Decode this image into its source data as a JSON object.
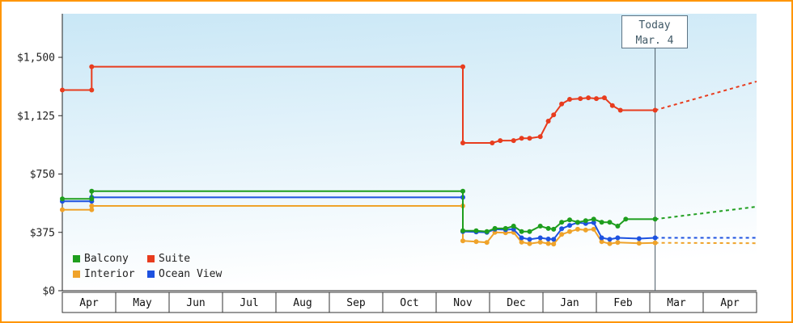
{
  "chart_data": {
    "type": "line",
    "x_axis": {
      "months": [
        "Apr",
        "May",
        "Jun",
        "Jul",
        "Aug",
        "Sep",
        "Oct",
        "Nov",
        "Dec",
        "Jan",
        "Feb",
        "Mar",
        "Apr"
      ]
    },
    "y_axis": {
      "ticks": [
        {
          "label": "$1,500",
          "value": 1500
        },
        {
          "label": "$1,125",
          "value": 1125
        },
        {
          "label": "$750",
          "value": 750
        },
        {
          "label": "$375",
          "value": 375
        },
        {
          "label": "$0",
          "value": 0
        }
      ]
    },
    "ylim": [
      0,
      1500
    ],
    "x_max": 13,
    "grid": false,
    "legend_position": "bottom-left",
    "today": {
      "label": "Today",
      "date": "Mar. 4",
      "x": 11.1
    },
    "series": [
      {
        "name": "Balcony",
        "color": "#1e9e1e",
        "solid": [
          [
            0,
            590
          ],
          [
            0.55,
            590
          ],
          [
            0.55,
            640
          ],
          [
            7.5,
            640
          ],
          [
            7.5,
            385
          ],
          [
            7.75,
            385
          ],
          [
            7.95,
            380
          ],
          [
            8.1,
            400
          ],
          [
            8.3,
            400
          ],
          [
            8.45,
            415
          ],
          [
            8.6,
            380
          ],
          [
            8.75,
            380
          ],
          [
            8.95,
            415
          ],
          [
            9.1,
            400
          ],
          [
            9.2,
            395
          ],
          [
            9.35,
            440
          ],
          [
            9.5,
            455
          ],
          [
            9.65,
            440
          ],
          [
            9.8,
            450
          ],
          [
            9.95,
            460
          ],
          [
            10.1,
            440
          ],
          [
            10.25,
            440
          ],
          [
            10.4,
            415
          ],
          [
            10.55,
            460
          ],
          [
            11.1,
            460
          ]
        ],
        "dotted": [
          [
            11.1,
            460
          ],
          [
            13,
            540
          ]
        ]
      },
      {
        "name": "Suite",
        "color": "#e83c1e",
        "solid": [
          [
            0,
            1290
          ],
          [
            0.55,
            1290
          ],
          [
            0.55,
            1440
          ],
          [
            7.5,
            1440
          ],
          [
            7.5,
            950
          ],
          [
            8.05,
            950
          ],
          [
            8.2,
            965
          ],
          [
            8.45,
            965
          ],
          [
            8.6,
            980
          ],
          [
            8.75,
            980
          ],
          [
            8.95,
            990
          ],
          [
            9.1,
            1090
          ],
          [
            9.2,
            1130
          ],
          [
            9.35,
            1200
          ],
          [
            9.5,
            1230
          ],
          [
            9.7,
            1235
          ],
          [
            9.85,
            1240
          ],
          [
            10.0,
            1235
          ],
          [
            10.15,
            1240
          ],
          [
            10.3,
            1190
          ],
          [
            10.45,
            1160
          ],
          [
            11.1,
            1160
          ]
        ],
        "dotted": [
          [
            11.1,
            1160
          ],
          [
            13,
            1345
          ]
        ]
      },
      {
        "name": "Interior",
        "color": "#efa32a",
        "solid": [
          [
            0,
            520
          ],
          [
            0.55,
            520
          ],
          [
            0.55,
            545
          ],
          [
            7.5,
            545
          ],
          [
            7.5,
            320
          ],
          [
            7.75,
            315
          ],
          [
            7.95,
            310
          ],
          [
            8.1,
            375
          ],
          [
            8.3,
            372
          ],
          [
            8.45,
            375
          ],
          [
            8.6,
            312
          ],
          [
            8.75,
            302
          ],
          [
            8.95,
            312
          ],
          [
            9.1,
            303
          ],
          [
            9.2,
            300
          ],
          [
            9.35,
            362
          ],
          [
            9.5,
            380
          ],
          [
            9.65,
            395
          ],
          [
            9.8,
            390
          ],
          [
            9.95,
            395
          ],
          [
            10.1,
            315
          ],
          [
            10.25,
            302
          ],
          [
            10.4,
            310
          ],
          [
            10.8,
            305
          ],
          [
            11.1,
            308
          ]
        ],
        "dotted": [
          [
            11.1,
            308
          ],
          [
            13,
            305
          ]
        ]
      },
      {
        "name": "Ocean View",
        "color": "#1d52e0",
        "solid": [
          [
            0,
            575
          ],
          [
            0.55,
            575
          ],
          [
            0.55,
            600
          ],
          [
            7.5,
            600
          ],
          [
            7.5,
            380
          ],
          [
            7.75,
            378
          ],
          [
            7.95,
            375
          ],
          [
            8.1,
            395
          ],
          [
            8.3,
            392
          ],
          [
            8.45,
            395
          ],
          [
            8.6,
            340
          ],
          [
            8.75,
            330
          ],
          [
            8.95,
            340
          ],
          [
            9.1,
            332
          ],
          [
            9.2,
            330
          ],
          [
            9.35,
            398
          ],
          [
            9.5,
            420
          ],
          [
            9.65,
            438
          ],
          [
            9.8,
            432
          ],
          [
            9.95,
            438
          ],
          [
            10.1,
            340
          ],
          [
            10.25,
            330
          ],
          [
            10.4,
            340
          ],
          [
            10.8,
            335
          ],
          [
            11.1,
            340
          ]
        ],
        "dotted": [
          [
            11.1,
            340
          ],
          [
            13,
            340
          ]
        ]
      }
    ],
    "colors": {
      "frame_border": "#ff9500",
      "plot_gradient_top": "#c9e7f6",
      "plot_gradient_bottom": "#ffffff",
      "today_line": "#4a5a66"
    }
  }
}
